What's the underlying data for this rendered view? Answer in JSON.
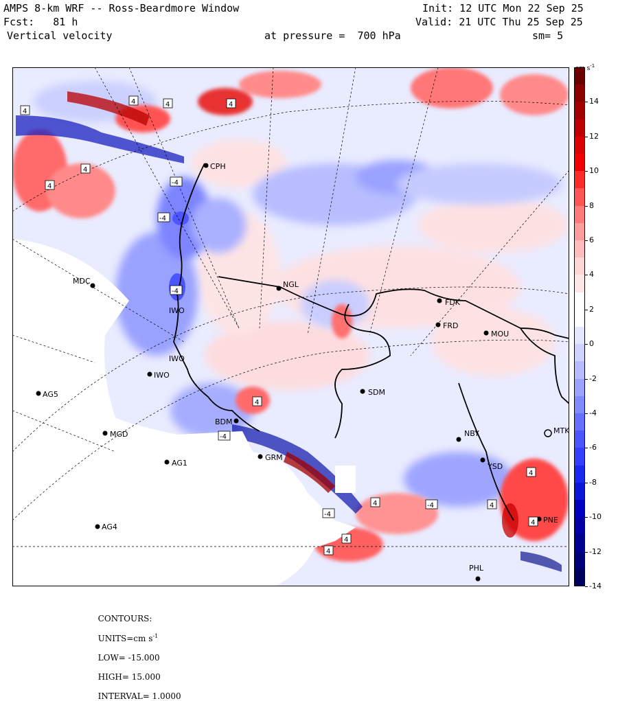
{
  "header": {
    "title": "AMPS 8-km WRF -- Ross-Beardmore Window",
    "forecast": "Fcst:   81 h",
    "field": "Vertical velocity",
    "init": "Init: 12 UTC Mon 22 Sep 25",
    "valid": "Valid: 21 UTC Thu 25 Sep 25",
    "pressure": "at pressure =  700 hPa",
    "smoothing": "sm= 5"
  },
  "colorbar": {
    "units_label": "cm s",
    "units_exponent": "-1",
    "labels": [
      "14",
      "12",
      "10",
      "8",
      "6",
      "4",
      "2",
      "0",
      "-2",
      "-4",
      "-6",
      "-8",
      "-10",
      "-12",
      "-14"
    ],
    "colors": [
      "#6b0000",
      "#8b0000",
      "#a30000",
      "#c00000",
      "#dc0000",
      "#f00000",
      "#ff2a2a",
      "#ff5555",
      "#ff7a7a",
      "#ff9d9d",
      "#ffbcbc",
      "#ffd6d6",
      "#ffe6e6",
      "#ffffff",
      "#ffffff",
      "#e4e6ff",
      "#cfd3ff",
      "#b6bcff",
      "#9ca3ff",
      "#8189ff",
      "#6670ff",
      "#4c55ff",
      "#3340ff",
      "#1a28f0",
      "#0a17d8",
      "#0000c0",
      "#0000a6",
      "#000090",
      "#000078",
      "#000060"
    ]
  },
  "stations": [
    {
      "name": "CPH"
    },
    {
      "name": "MDC"
    },
    {
      "name": "NGL"
    },
    {
      "name": "FDK"
    },
    {
      "name": "FRD"
    },
    {
      "name": "MOU"
    },
    {
      "name": "SDM"
    },
    {
      "name": "IWO"
    },
    {
      "name": "AG5"
    },
    {
      "name": "BDM"
    },
    {
      "name": "MGD"
    },
    {
      "name": "AG1"
    },
    {
      "name": "GRM"
    },
    {
      "name": "NBY"
    },
    {
      "name": "MTK"
    },
    {
      "name": "YSD"
    },
    {
      "name": "PNE"
    },
    {
      "name": "AG4"
    },
    {
      "name": "PHL"
    },
    {
      "name": "IWO"
    },
    {
      "name": "IWO"
    }
  ],
  "contour_labels": [
    "4",
    "4",
    "4",
    "4",
    "4",
    "4",
    "-4",
    "-4",
    "-4",
    "-4",
    "-4",
    "4",
    "4",
    "4",
    "4",
    "-4",
    "4",
    "4",
    "4"
  ],
  "footer": {
    "contours": "CONTOURS:",
    "units": "UNITS=cm s",
    "units_exp": "-1",
    "low": "LOW= -15.000",
    "high": "HIGH= 15.000",
    "interval": "INTERVAL= 1.0000"
  }
}
